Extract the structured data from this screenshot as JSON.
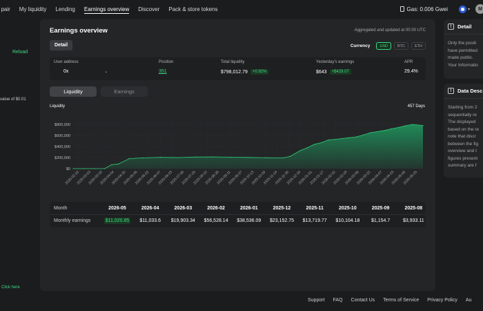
{
  "nav": {
    "items": [
      "t pair",
      "My liquidity",
      "Lending",
      "Earnings overview",
      "Discover",
      "Pack & store tokens"
    ],
    "active_index": 3,
    "gas_label": "Gas: 0.006 Gwei",
    "avatar_letter": "M"
  },
  "left": {
    "reload": "Reload",
    "min_value": "value of $0.01",
    "click_here": "Click here"
  },
  "panel": {
    "title": "Earnings overview",
    "aggregated": "Aggregated and updated at 00:00 UTC",
    "detail_button": "Detail",
    "currency_label": "Currency",
    "currencies": [
      "USD",
      "BTC",
      "ETH"
    ],
    "selected_currency": "USD",
    "info": {
      "user_address_label": "User address",
      "user_address_value": "0x",
      "position_label": "Position",
      "position_value": "351",
      "total_liquidity_label": "Total liquidity",
      "total_liquidity_value": "$798,012.79",
      "total_liquidity_change": "+0.92%",
      "yesterday_label": "Yesterday's earnings",
      "yesterday_value": "$643",
      "yesterday_change": "+$429.07",
      "apr_label": "APR",
      "apr_value": "29.4%"
    },
    "tabs": [
      "Liquidity",
      "Earnings"
    ],
    "selected_tab": "Liquidity",
    "chart_title": "Liquidity",
    "days": "457 Days"
  },
  "chart_data": {
    "type": "area",
    "title": "Liquidity",
    "subtitle": "457 Days",
    "y_ticks": [
      "$0",
      "$200,000",
      "$400,000",
      "$600,000",
      "$800,000"
    ],
    "ylim": [
      0,
      850000
    ],
    "x_tick_labels": [
      "2025-02-15",
      "2025-03-03",
      "2025-03-19",
      "2025-04-04",
      "2025-04-20",
      "2025-05-06",
      "2025-05-22",
      "2025-06-07",
      "2025-06-23",
      "2025-07-09",
      "2025-07-25",
      "2025-08-10",
      "2025-08-26",
      "2025-09-11",
      "2025-09-27",
      "2025-10-13",
      "2025-10-29",
      "2025-11-14",
      "2025-11-30",
      "2025-12-16",
      "2026-01-01",
      "2026-01-17",
      "2026-02-02",
      "2026-02-18",
      "2026-03-06",
      "2026-03-22",
      "2026-04-07",
      "2026-04-23",
      "2026-05-09",
      "2026-05-25"
    ],
    "x_progress": [
      0,
      0.03,
      0.06,
      0.09,
      0.11,
      0.13,
      0.16,
      0.2,
      0.25,
      0.3,
      0.35,
      0.4,
      0.45,
      0.5,
      0.55,
      0.6,
      0.62,
      0.65,
      0.67,
      0.69,
      0.71,
      0.73,
      0.75,
      0.77,
      0.79,
      0.81,
      0.83,
      0.85,
      0.87,
      0.89,
      0.91,
      0.93,
      0.95,
      0.97,
      1.0
    ],
    "y_values": [
      0,
      0,
      0,
      0,
      70000,
      85000,
      180000,
      195000,
      205000,
      200000,
      210000,
      212000,
      208000,
      202000,
      198000,
      195000,
      220000,
      330000,
      380000,
      440000,
      470000,
      520000,
      530000,
      545000,
      560000,
      575000,
      610000,
      650000,
      670000,
      690000,
      720000,
      745000,
      775000,
      800000,
      780000
    ],
    "color": "#1f8f5a"
  },
  "table": {
    "month_label": "Month",
    "earnings_label": "Monthly earnings",
    "months": [
      "2026-05",
      "2026-04",
      "2026-03",
      "2026-02",
      "2026-01",
      "2025-12",
      "2025-11",
      "2025-10",
      "2025-09",
      "2025-08"
    ],
    "earnings": [
      "$11,020.85",
      "$11,033.6",
      "$19,903.34",
      "$56,528.14",
      "$38,536.09",
      "$23,152.75",
      "$13,719.77",
      "$10,104.18",
      "$1,154.7",
      "$3,933.11"
    ]
  },
  "side": {
    "detail_title": "Detail",
    "detail_lines": [
      "Only the positi",
      "have permitted",
      "made public.",
      "Your Informatio"
    ],
    "desc_title": "Data Desc",
    "desc_lines": [
      "Starting from 2",
      "sequentially re",
      "The displayed",
      "based on the re",
      "note that discr",
      "between the fig",
      "overview and t",
      "figures present",
      "summary are f"
    ]
  },
  "footer": [
    "Support",
    "FAQ",
    "Contact Us",
    "Terms of Service",
    "Privacy Policy",
    "Au"
  ],
  "colors": {
    "accent": "#3ddc84",
    "panel": "#242527",
    "bg": "#1b1c1e"
  }
}
